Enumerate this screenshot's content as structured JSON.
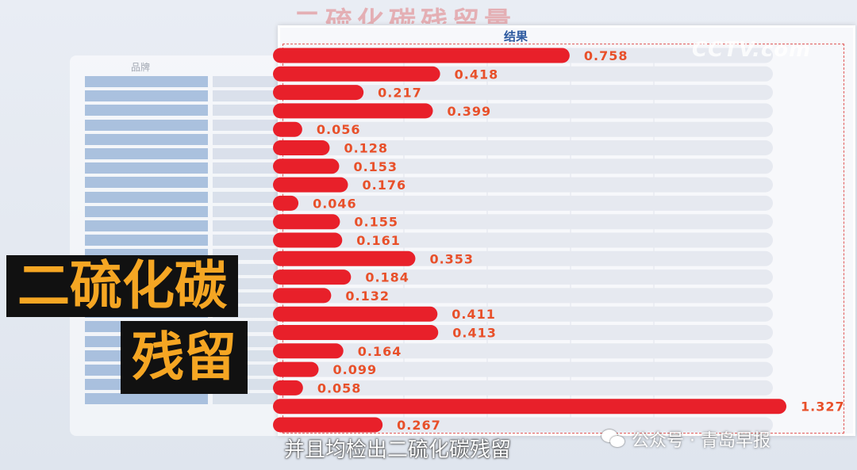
{
  "background": {
    "title": "二硫化碳残留量",
    "table_header": "品牌"
  },
  "panel": {
    "title": "结果"
  },
  "watermark": "CCTV.com",
  "overlay": {
    "label_line1": "二硫化碳",
    "label_line2": "残留"
  },
  "subtitle": "并且均检出二硫化碳残留",
  "wechat": {
    "text": "公众号 · 青岛早报",
    "icon": "wechat-icon"
  },
  "colors": {
    "bar": "#e8202a",
    "track": "#e6e9f0",
    "value_text": "#e8502a",
    "label_bg": "#111111",
    "label_fg": "#f5a623"
  },
  "chart_data": {
    "type": "bar",
    "orientation": "horizontal",
    "title": "结果",
    "values": [
      0.758,
      0.418,
      0.217,
      0.399,
      0.056,
      0.128,
      0.153,
      0.176,
      0.046,
      0.155,
      0.161,
      0.353,
      0.184,
      0.132,
      0.411,
      0.413,
      0.164,
      0.099,
      0.058,
      1.327,
      0.267
    ],
    "labels": [
      "0.758",
      "0.418",
      "0.217",
      "0.399",
      "0.056",
      "0.128",
      "0.153",
      "0.176",
      "0.046",
      "0.155",
      "0.161",
      "0.353",
      "0.184",
      "0.132",
      "0.411",
      "0.413",
      "0.164",
      "0.099",
      "0.058",
      "1.327",
      "0.267"
    ],
    "xlim": [
      0,
      1.327
    ],
    "grid": true
  }
}
